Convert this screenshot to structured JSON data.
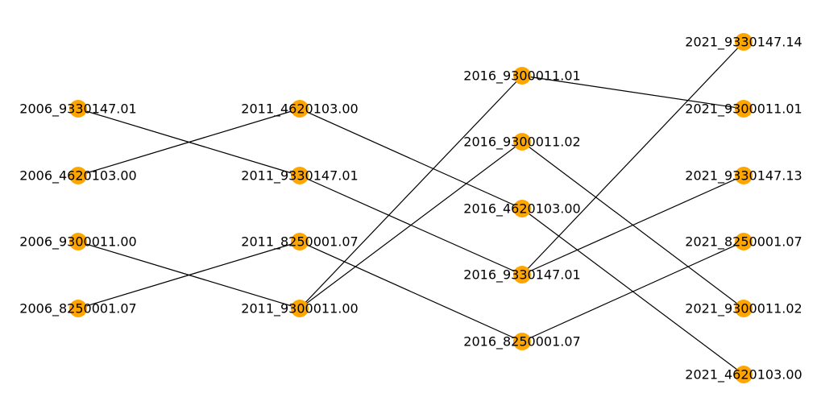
{
  "colors": {
    "node": "#FFA500",
    "edge": "#000000",
    "label": "#000000",
    "background": "#FFFFFF"
  },
  "nodes": [
    {
      "id": "2006_9330147.01",
      "label": "2006_9330147.01"
    },
    {
      "id": "2006_4620103.00",
      "label": "2006_4620103.00"
    },
    {
      "id": "2006_9300011.00",
      "label": "2006_9300011.00"
    },
    {
      "id": "2006_8250001.07",
      "label": "2006_8250001.07"
    },
    {
      "id": "2011_4620103.00",
      "label": "2011_4620103.00"
    },
    {
      "id": "2011_9330147.01",
      "label": "2011_9330147.01"
    },
    {
      "id": "2011_8250001.07",
      "label": "2011_8250001.07"
    },
    {
      "id": "2011_9300011.00",
      "label": "2011_9300011.00"
    },
    {
      "id": "2016_9300011.01",
      "label": "2016_9300011.01"
    },
    {
      "id": "2016_9300011.02",
      "label": "2016_9300011.02"
    },
    {
      "id": "2016_4620103.00",
      "label": "2016_4620103.00"
    },
    {
      "id": "2016_9330147.01",
      "label": "2016_9330147.01"
    },
    {
      "id": "2016_8250001.07",
      "label": "2016_8250001.07"
    },
    {
      "id": "2021_9330147.14",
      "label": "2021_9330147.14"
    },
    {
      "id": "2021_9300011.01",
      "label": "2021_9300011.01"
    },
    {
      "id": "2021_9330147.13",
      "label": "2021_9330147.13"
    },
    {
      "id": "2021_8250001.07",
      "label": "2021_8250001.07"
    },
    {
      "id": "2021_9300011.02",
      "label": "2021_9300011.02"
    },
    {
      "id": "2021_4620103.00",
      "label": "2021_4620103.00"
    }
  ],
  "edges": [
    {
      "source": "2006_9330147.01",
      "target": "2011_9330147.01"
    },
    {
      "source": "2006_4620103.00",
      "target": "2011_4620103.00"
    },
    {
      "source": "2006_9300011.00",
      "target": "2011_9300011.00"
    },
    {
      "source": "2006_8250001.07",
      "target": "2011_8250001.07"
    },
    {
      "source": "2011_4620103.00",
      "target": "2016_4620103.00"
    },
    {
      "source": "2011_9330147.01",
      "target": "2016_9330147.01"
    },
    {
      "source": "2011_8250001.07",
      "target": "2016_8250001.07"
    },
    {
      "source": "2011_9300011.00",
      "target": "2016_9300011.01"
    },
    {
      "source": "2011_9300011.00",
      "target": "2016_9300011.02"
    },
    {
      "source": "2016_9300011.01",
      "target": "2021_9300011.01"
    },
    {
      "source": "2016_9300011.02",
      "target": "2021_9300011.02"
    },
    {
      "source": "2016_4620103.00",
      "target": "2021_4620103.00"
    },
    {
      "source": "2016_9330147.01",
      "target": "2021_9330147.14"
    },
    {
      "source": "2016_9330147.01",
      "target": "2021_9330147.13"
    },
    {
      "source": "2016_8250001.07",
      "target": "2021_8250001.07"
    }
  ]
}
